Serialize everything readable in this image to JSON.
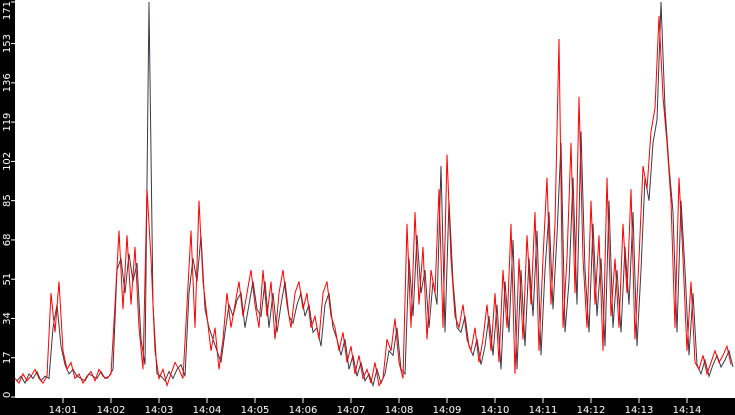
{
  "chart_data": {
    "type": "line",
    "title": "",
    "xlabel": "",
    "ylabel": "",
    "ylim": [
      0,
      171
    ],
    "xlim": [
      "14:00:00",
      "14:15:00"
    ],
    "grid": false,
    "y_ticks": [
      "0",
      "17",
      "34",
      "51",
      "68",
      "85",
      "102",
      "119",
      "136",
      "153",
      "171"
    ],
    "x_ticks": [
      "14:01",
      "14:02",
      "14:03",
      "14:04",
      "14:05",
      "14:06",
      "14:07",
      "14:08",
      "14:09",
      "14:10",
      "14:11",
      "14:12",
      "14:13",
      "14:14"
    ],
    "sample_interval_seconds": 5,
    "series": [
      {
        "color": "#3a3a48",
        "values": [
          7,
          9,
          6,
          10,
          8,
          11,
          7,
          9,
          8,
          30,
          40,
          22,
          14,
          10,
          12,
          9,
          8,
          7,
          10,
          9,
          8,
          11,
          8,
          9,
          12,
          55,
          60,
          45,
          62,
          50,
          58,
          25,
          14,
          171,
          40,
          10,
          9,
          7,
          11,
          8,
          12,
          14,
          9,
          45,
          60,
          50,
          70,
          38,
          30,
          25,
          20,
          15,
          28,
          40,
          35,
          42,
          45,
          30,
          40,
          50,
          38,
          35,
          50,
          30,
          45,
          28,
          40,
          50,
          35,
          32,
          40,
          45,
          35,
          40,
          28,
          30,
          22,
          40,
          45,
          30,
          25,
          18,
          25,
          12,
          18,
          9,
          15,
          7,
          10,
          5,
          12,
          6,
          10,
          20,
          18,
          30,
          12,
          10,
          60,
          35,
          70,
          45,
          55,
          30,
          50,
          40,
          100,
          28,
          85,
          50,
          30,
          28,
          35,
          22,
          18,
          25,
          14,
          22,
          35,
          18,
          40,
          12,
          50,
          28,
          68,
          12,
          55,
          22,
          60,
          35,
          72,
          18,
          55,
          80,
          38,
          70,
          110,
          28,
          50,
          95,
          40,
          115,
          55,
          28,
          75,
          35,
          60,
          22,
          85,
          30,
          55,
          28,
          65,
          40,
          80,
          22,
          55,
          95,
          85,
          110,
          120,
          171,
          125,
          100,
          80,
          28,
          85,
          55,
          18,
          45,
          14,
          10,
          16,
          9,
          14,
          18,
          13,
          16,
          20,
          13
        ]
      },
      {
        "color": "#ff0000",
        "values": [
          8,
          6,
          10,
          7,
          9,
          12,
          8,
          6,
          9,
          45,
          28,
          50,
          20,
          12,
          15,
          8,
          10,
          6,
          9,
          11,
          7,
          12,
          9,
          8,
          10,
          40,
          72,
          38,
          70,
          40,
          65,
          30,
          12,
          90,
          60,
          20,
          8,
          12,
          5,
          10,
          15,
          12,
          8,
          40,
          72,
          30,
          85,
          50,
          35,
          20,
          30,
          12,
          25,
          45,
          30,
          40,
          50,
          35,
          45,
          55,
          40,
          30,
          55,
          35,
          50,
          25,
          45,
          55,
          40,
          30,
          45,
          50,
          38,
          45,
          30,
          35,
          25,
          45,
          50,
          35,
          30,
          20,
          28,
          15,
          22,
          10,
          18,
          8,
          12,
          6,
          15,
          5,
          8,
          25,
          20,
          34,
          15,
          8,
          75,
          30,
          80,
          40,
          65,
          25,
          55,
          45,
          90,
          30,
          105,
          60,
          35,
          30,
          40,
          25,
          20,
          30,
          15,
          25,
          40,
          20,
          45,
          15,
          55,
          30,
          75,
          10,
          60,
          25,
          70,
          40,
          80,
          20,
          60,
          95,
          40,
          75,
          155,
          30,
          60,
          110,
          45,
          130,
          60,
          30,
          85,
          40,
          70,
          20,
          95,
          35,
          60,
          30,
          75,
          45,
          90,
          25,
          60,
          100,
          90,
          115,
          125,
          165,
          130,
          110,
          85,
          30,
          95,
          60,
          20,
          50,
          15,
          12,
          18,
          10,
          15,
          20,
          15,
          18,
          22,
          14
        ]
      }
    ]
  }
}
